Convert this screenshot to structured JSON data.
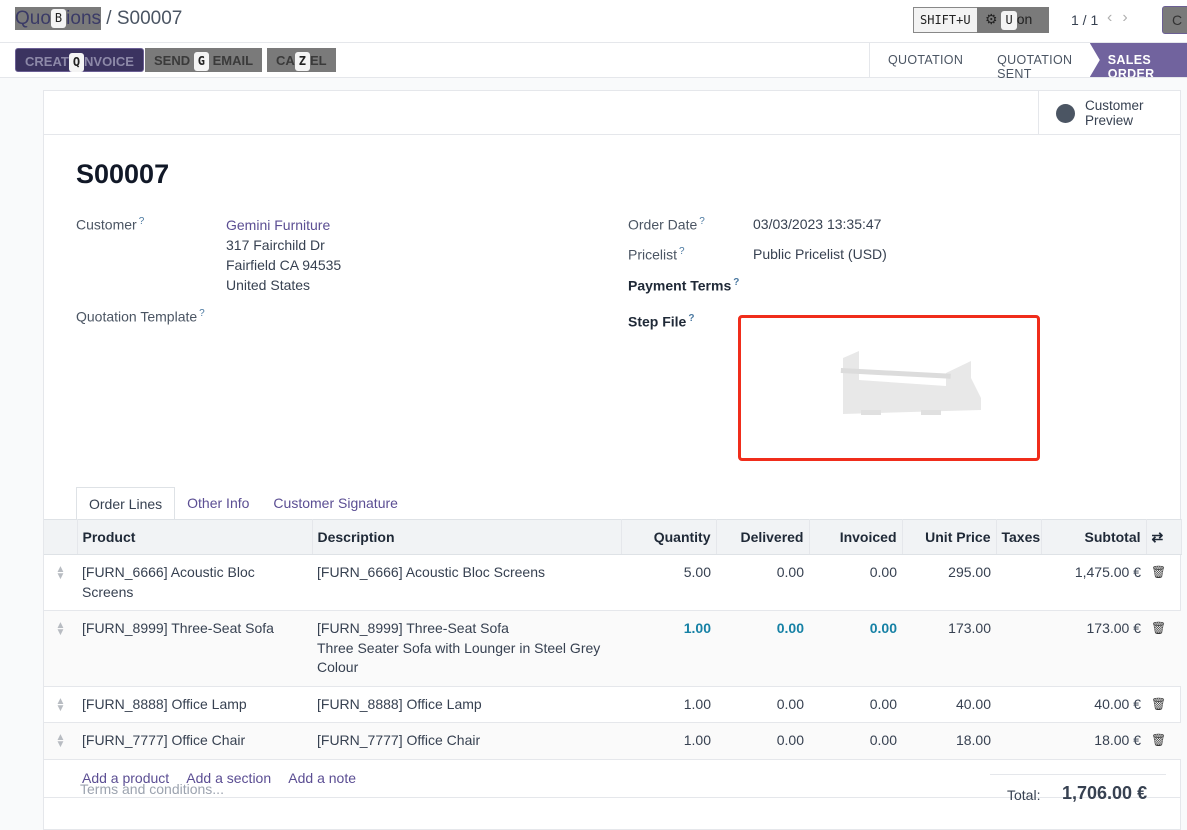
{
  "breadcrumb": {
    "parent": "Quotations",
    "parent_shown_left": "Quo",
    "parent_shown_right": "ions",
    "separator": "/",
    "current": "S00007",
    "hotkey": "B"
  },
  "toolbar": {
    "shift_hint": "SHIFT+U",
    "action_label": "Action",
    "action_hotkey": "U",
    "pager": "1 / 1",
    "create_label": "Create"
  },
  "actions": [
    {
      "left": "CREAT",
      "hotkey": "Q",
      "right": "NVOICE",
      "label": "CREATE INVOICE"
    },
    {
      "left": "SEND",
      "hotkey": "G",
      "right": "EMAIL",
      "label": "SEND BY EMAIL"
    },
    {
      "left": "CA",
      "hotkey": "Z",
      "right": "EL",
      "label": "CANCEL"
    }
  ],
  "statusbar": [
    "QUOTATION",
    "QUOTATION SENT",
    "SALES ORDER"
  ],
  "customer_preview": "Customer Preview",
  "record": {
    "name": "S00007",
    "customer_label": "Customer",
    "customer": "Gemini Furniture",
    "address": [
      "317 Fairchild Dr",
      "Fairfield CA 94535",
      "United States"
    ],
    "template_label": "Quotation Template",
    "order_date_label": "Order Date",
    "order_date": "03/03/2023 13:35:47",
    "pricelist_label": "Pricelist",
    "pricelist": "Public Pricelist (USD)",
    "payment_terms_label": "Payment Terms",
    "step_file_label": "Step File",
    "help": "?"
  },
  "tabs": [
    "Order Lines",
    "Other Info",
    "Customer Signature"
  ],
  "table": {
    "columns": [
      "Product",
      "Description",
      "Quantity",
      "Delivered",
      "Invoiced",
      "Unit Price",
      "Taxes",
      "Subtotal"
    ],
    "rows": [
      {
        "product": "[FURN_6666] Acoustic Bloc Screens",
        "description": [
          "[FURN_6666] Acoustic Bloc Screens"
        ],
        "quantity": "5.00",
        "delivered": "0.00",
        "invoiced": "0.00",
        "unit_price": "295.00",
        "taxes": "",
        "subtotal": "1,475.00 €"
      },
      {
        "product": "[FURN_8999] Three-Seat Sofa",
        "description": [
          "[FURN_8999] Three-Seat Sofa",
          "Three Seater Sofa with Lounger in Steel Grey",
          "Colour"
        ],
        "quantity": "1.00",
        "delivered": "0.00",
        "invoiced": "0.00",
        "unit_price": "173.00",
        "taxes": "",
        "subtotal": "173.00 €"
      },
      {
        "product": "[FURN_8888] Office Lamp",
        "description": [
          "[FURN_8888] Office Lamp"
        ],
        "quantity": "1.00",
        "delivered": "0.00",
        "invoiced": "0.00",
        "unit_price": "40.00",
        "taxes": "",
        "subtotal": "40.00 €"
      },
      {
        "product": "[FURN_7777] Office Chair",
        "description": [
          "[FURN_7777] Office Chair"
        ],
        "quantity": "1.00",
        "delivered": "0.00",
        "invoiced": "0.00",
        "unit_price": "18.00",
        "taxes": "",
        "subtotal": "18.00 €"
      }
    ],
    "add_links": [
      "Add a product",
      "Add a section",
      "Add a note"
    ]
  },
  "terms_placeholder": "Terms and conditions...",
  "total_label": "Total:",
  "total": "1,706.00 €",
  "colors": {
    "primary": "#71639e",
    "highlight": "#1681a5",
    "step_border": "#f02d1b"
  }
}
